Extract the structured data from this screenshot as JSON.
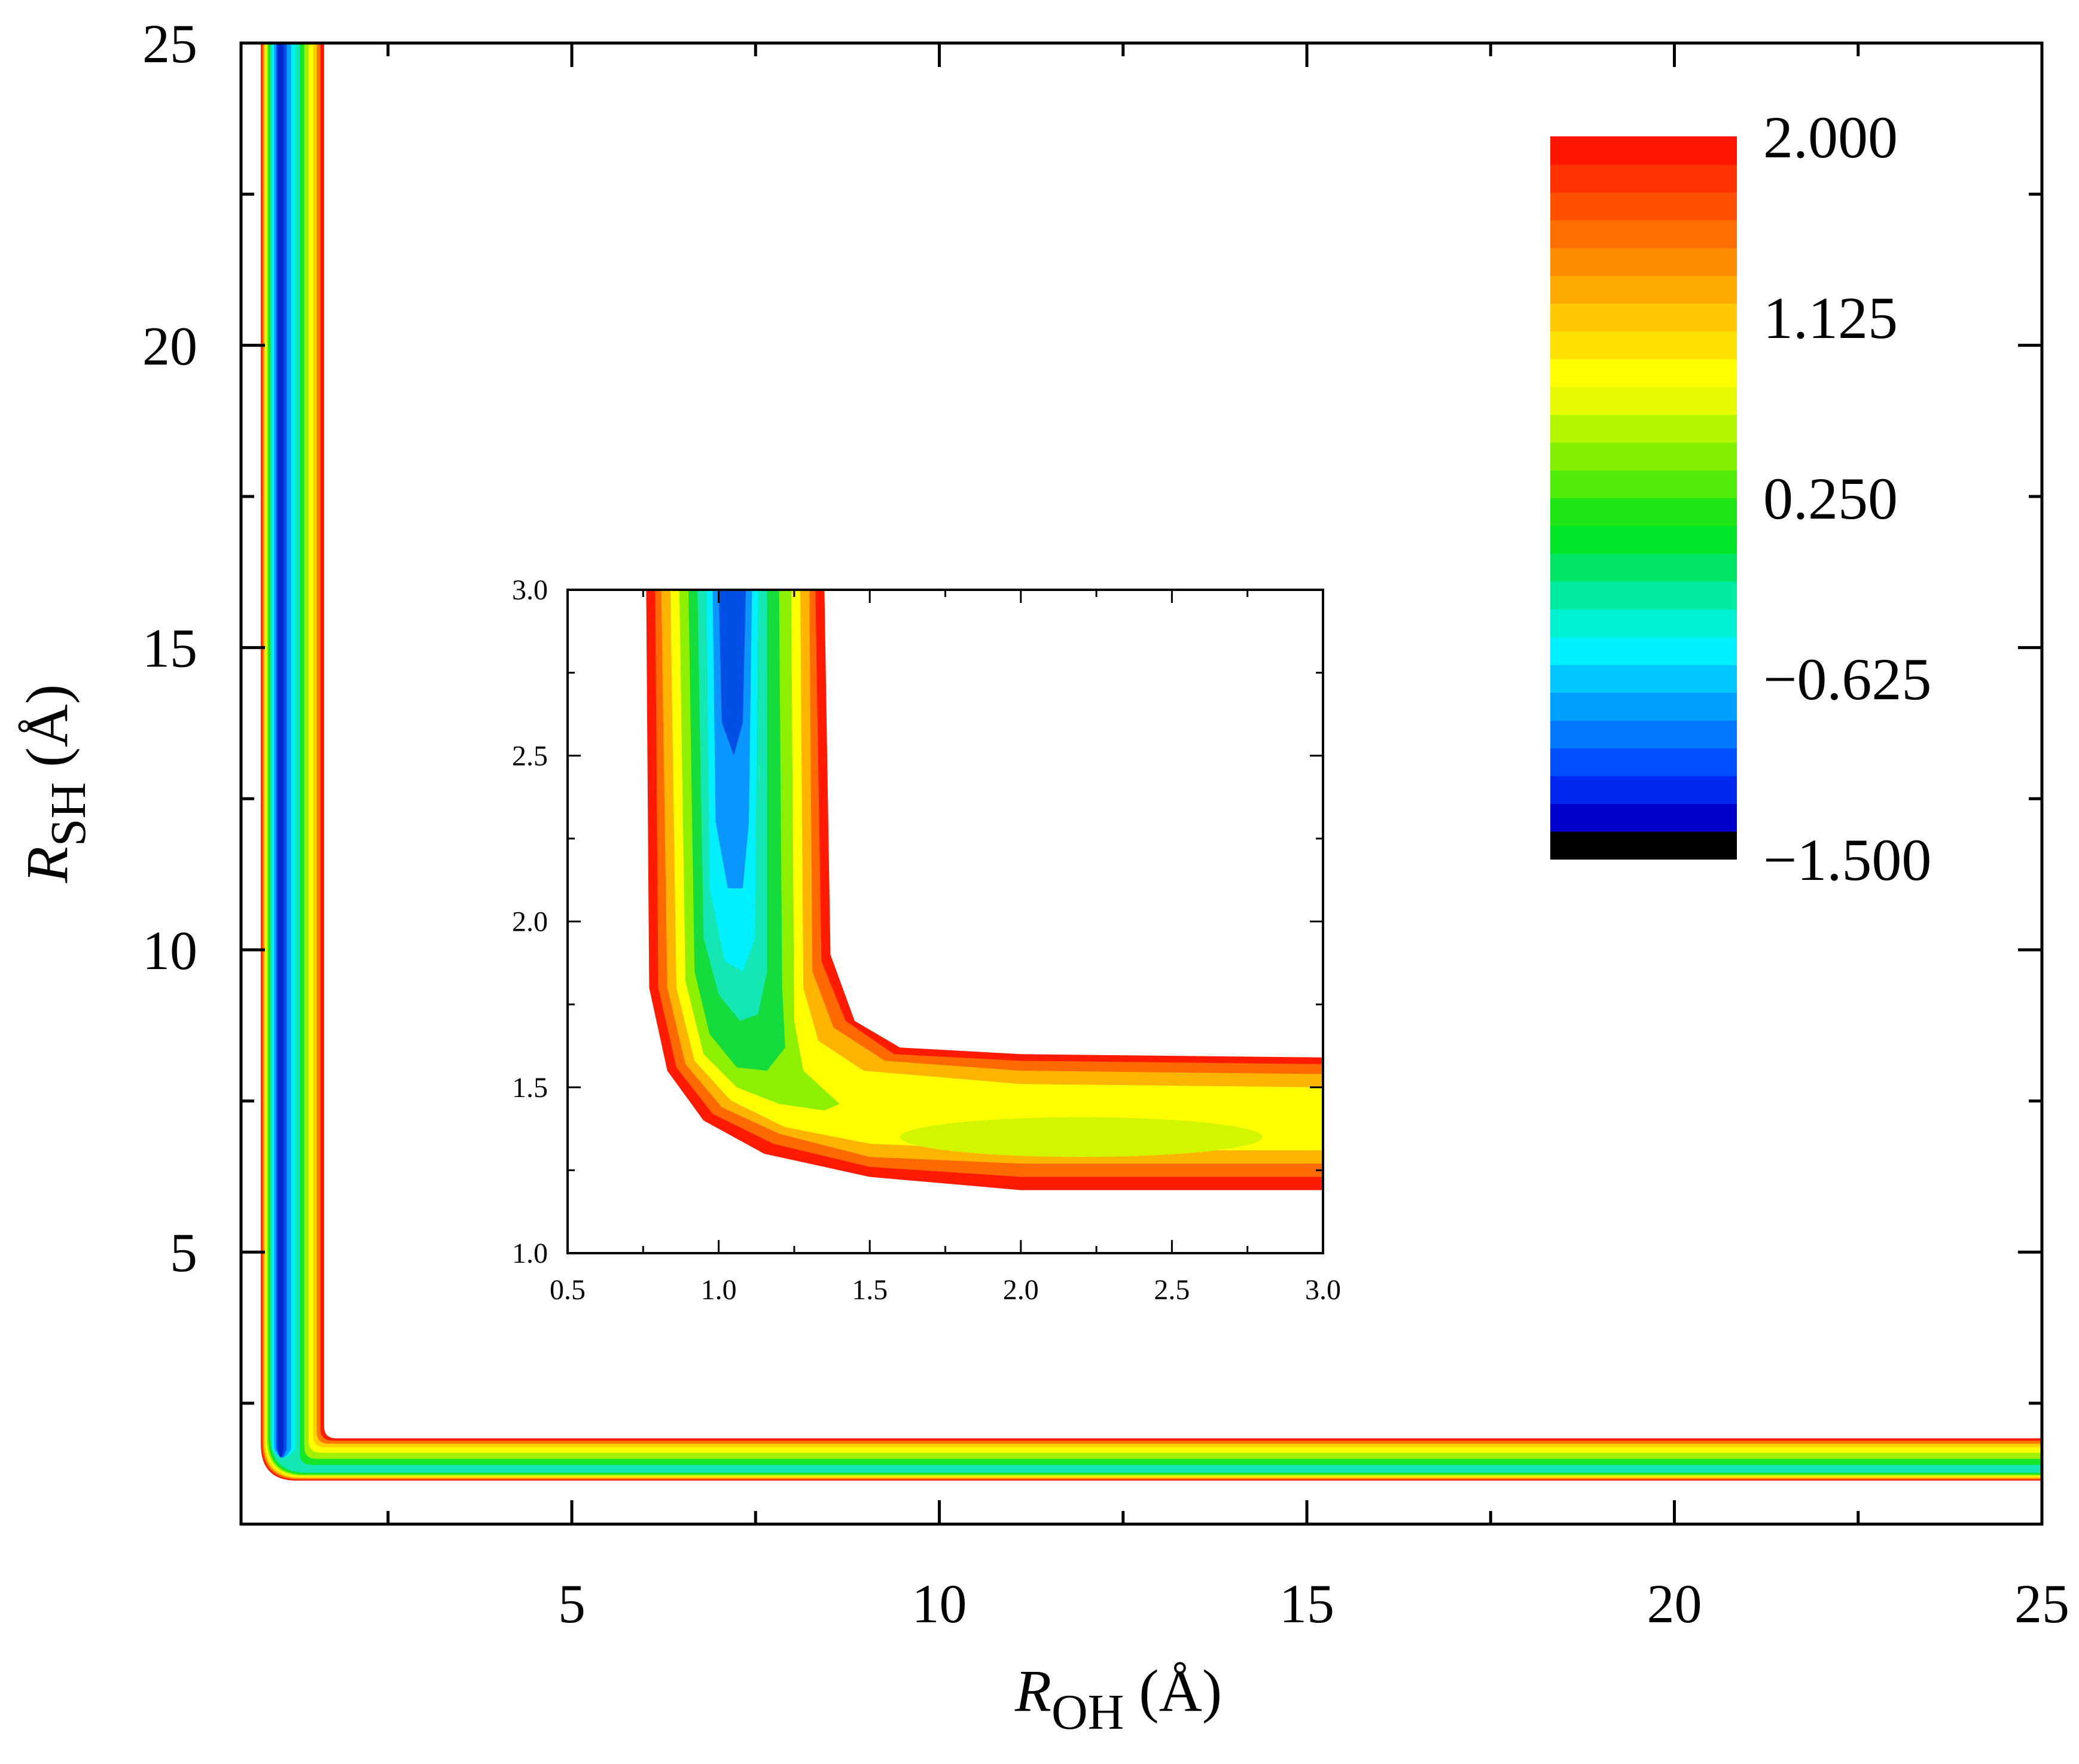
{
  "chart_data": {
    "type": "contour",
    "main": {
      "xlabel": {
        "symbol": "R",
        "sub": "OH",
        "unit": "(Å)"
      },
      "ylabel": {
        "symbol": "R",
        "sub": "SH",
        "unit": "(Å)"
      },
      "xlim": [
        0.5,
        25
      ],
      "ylim": [
        0.5,
        25
      ],
      "xticks": [
        5,
        10,
        15,
        20,
        25
      ],
      "yticks": [
        5,
        10,
        15,
        20,
        25
      ],
      "xtick_labels": [
        "5",
        "10",
        "15",
        "20",
        "25"
      ],
      "ytick_labels": [
        "5",
        "10",
        "15",
        "20",
        "25"
      ],
      "channels": {
        "vertical": {
          "x_min": 0.75,
          "x_max": 1.6,
          "x_well": 1.0
        },
        "horizontal": {
          "y_min": 1.2,
          "y_max": 1.9,
          "y_well": 1.35
        }
      }
    },
    "inset": {
      "xlim": [
        0.5,
        3.0
      ],
      "ylim": [
        1.0,
        3.0
      ],
      "xtick_labels": [
        "0.5",
        "1.0",
        "1.5",
        "2.0",
        "2.5",
        "3.0"
      ],
      "ytick_labels": [
        "1.0",
        "1.5",
        "2.0",
        "2.5",
        "3.0"
      ],
      "xticks": [
        0.5,
        1.0,
        1.5,
        2.0,
        2.5,
        3.0
      ],
      "yticks": [
        1.0,
        1.5,
        2.0,
        2.5,
        3.0
      ],
      "bands": [
        {
          "level": 2.0,
          "color": "#ff1a00",
          "left": [
            [
              0.76,
              3.0
            ],
            [
              0.77,
              1.8
            ],
            [
              0.83,
              1.55
            ],
            [
              0.95,
              1.4
            ],
            [
              1.15,
              1.3
            ],
            [
              1.5,
              1.23
            ],
            [
              2.0,
              1.19
            ],
            [
              3.0,
              1.19
            ]
          ],
          "right": [
            [
              1.35,
              3.0
            ],
            [
              1.37,
              1.9
            ],
            [
              1.45,
              1.7
            ],
            [
              1.6,
              1.62
            ],
            [
              2.0,
              1.6
            ],
            [
              3.0,
              1.59
            ]
          ]
        },
        {
          "level": 1.7,
          "color": "#ff6a00",
          "left": [
            [
              0.79,
              3.0
            ],
            [
              0.8,
              1.8
            ],
            [
              0.86,
              1.56
            ],
            [
              0.98,
              1.42
            ],
            [
              1.18,
              1.33
            ],
            [
              1.5,
              1.26
            ],
            [
              2.0,
              1.23
            ],
            [
              3.0,
              1.23
            ]
          ],
          "right": [
            [
              1.32,
              3.0
            ],
            [
              1.34,
              1.88
            ],
            [
              1.42,
              1.7
            ],
            [
              1.58,
              1.6
            ],
            [
              2.0,
              1.58
            ],
            [
              3.0,
              1.57
            ]
          ]
        },
        {
          "level": 1.4,
          "color": "#ffb400",
          "left": [
            [
              0.81,
              3.0
            ],
            [
              0.83,
              1.8
            ],
            [
              0.89,
              1.57
            ],
            [
              1.01,
              1.44
            ],
            [
              1.2,
              1.36
            ],
            [
              1.5,
              1.29
            ],
            [
              2.0,
              1.27
            ],
            [
              3.0,
              1.27
            ]
          ],
          "right": [
            [
              1.3,
              3.0
            ],
            [
              1.31,
              1.85
            ],
            [
              1.38,
              1.68
            ],
            [
              1.55,
              1.58
            ],
            [
              2.0,
              1.55
            ],
            [
              3.0,
              1.54
            ]
          ]
        },
        {
          "level": 1.125,
          "color": "#ffff00",
          "left": [
            [
              0.84,
              3.0
            ],
            [
              0.86,
              1.8
            ],
            [
              0.92,
              1.58
            ],
            [
              1.04,
              1.46
            ],
            [
              1.22,
              1.38
            ],
            [
              1.5,
              1.33
            ],
            [
              2.0,
              1.31
            ],
            [
              3.0,
              1.31
            ]
          ],
          "right": [
            [
              1.27,
              3.0
            ],
            [
              1.28,
              1.8
            ],
            [
              1.33,
              1.64
            ],
            [
              1.48,
              1.55
            ],
            [
              2.0,
              1.51
            ],
            [
              3.0,
              1.5
            ]
          ]
        },
        {
          "level": 0.7,
          "color": "#8cf000",
          "left": [
            [
              0.87,
              3.0
            ],
            [
              0.89,
              1.82
            ],
            [
              0.95,
              1.6
            ],
            [
              1.06,
              1.5
            ],
            [
              1.2,
              1.45
            ],
            [
              1.35,
              1.43
            ],
            [
              1.4,
              1.45
            ],
            [
              1.28,
              1.55
            ],
            [
              1.25,
              1.7
            ],
            [
              1.24,
              3.0
            ]
          ]
        },
        {
          "level": 0.25,
          "color": "#14dc3c",
          "left": [
            [
              0.9,
              3.0
            ],
            [
              0.92,
              1.85
            ],
            [
              0.97,
              1.66
            ],
            [
              1.06,
              1.56
            ],
            [
              1.16,
              1.55
            ],
            [
              1.22,
              1.62
            ],
            [
              1.21,
              1.8
            ],
            [
              1.2,
              3.0
            ]
          ]
        },
        {
          "level": -0.2,
          "color": "#14e6b4",
          "left": [
            [
              0.93,
              3.0
            ],
            [
              0.95,
              1.95
            ],
            [
              1.0,
              1.78
            ],
            [
              1.07,
              1.7
            ],
            [
              1.13,
              1.72
            ],
            [
              1.16,
              1.85
            ],
            [
              1.16,
              3.0
            ]
          ]
        },
        {
          "level": -0.625,
          "color": "#00f0ff",
          "left": [
            [
              0.96,
              3.0
            ],
            [
              0.97,
              2.1
            ],
            [
              1.02,
              1.88
            ],
            [
              1.08,
              1.85
            ],
            [
              1.12,
              1.95
            ],
            [
              1.13,
              3.0
            ]
          ]
        },
        {
          "level": -1.0,
          "color": "#0a96ff",
          "left": [
            [
              0.98,
              3.0
            ],
            [
              0.99,
              2.3
            ],
            [
              1.03,
              2.1
            ],
            [
              1.08,
              2.1
            ],
            [
              1.1,
              2.3
            ],
            [
              1.11,
              3.0
            ]
          ]
        },
        {
          "level": -1.3,
          "color": "#0050e6",
          "left": [
            [
              1.0,
              3.0
            ],
            [
              1.01,
              2.6
            ],
            [
              1.05,
              2.5
            ],
            [
              1.08,
              2.6
            ],
            [
              1.09,
              3.0
            ]
          ]
        }
      ]
    },
    "colorbar": {
      "min": -1.5,
      "max": 2.0,
      "tick_labels": [
        "2.000",
        "1.125",
        "0.250",
        "−0.625",
        "−1.500"
      ],
      "tick_values": [
        2.0,
        1.125,
        0.25,
        -0.625,
        -1.5
      ],
      "colors": [
        "#000000",
        "#0000cc",
        "#0028f0",
        "#0050ff",
        "#0078ff",
        "#00a0ff",
        "#00c8ff",
        "#00f0ff",
        "#00f0d2",
        "#00eba0",
        "#00e664",
        "#00e628",
        "#1ee614",
        "#50ec0a",
        "#82f000",
        "#b4f500",
        "#e6fa00",
        "#ffff00",
        "#ffe100",
        "#ffc800",
        "#ffaa00",
        "#ff8c00",
        "#ff6e00",
        "#ff5000",
        "#ff3200",
        "#ff1400"
      ]
    }
  }
}
